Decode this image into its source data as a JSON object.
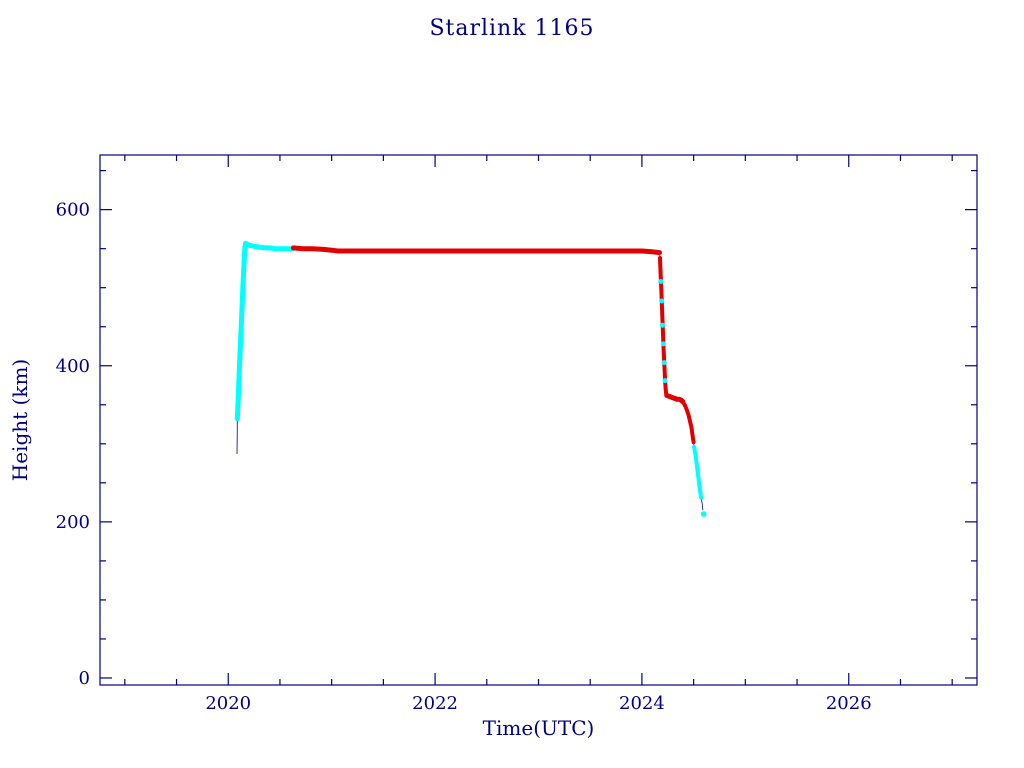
{
  "page": {
    "background": "#FFFFFF"
  },
  "chart_data": {
    "type": "scatter",
    "title": "Starlink 1165",
    "xlabel": "Time(UTC)",
    "ylabel": "Height (km)",
    "axis_color": "#000080",
    "grid": false,
    "legend": "none",
    "xlim": [
      2018.76,
      2027.24
    ],
    "ylim": [
      -9,
      670
    ],
    "xticks": [
      2020,
      2022,
      2024,
      2026
    ],
    "yticks": [
      0,
      200,
      400,
      600
    ],
    "x_minor_step": 0.5,
    "y_minor_step": 50,
    "colors": {
      "cyan_series": "#00FFFF",
      "red_series": "#E00000",
      "connector_line": "#000080"
    },
    "series": [
      {
        "name": "launch-ascent",
        "color": "#00FFFF",
        "width": 5,
        "points": [
          [
            2020.088,
            332
          ],
          [
            2020.093,
            348
          ],
          [
            2020.098,
            364
          ],
          [
            2020.103,
            380
          ],
          [
            2020.108,
            396
          ],
          [
            2020.113,
            412
          ],
          [
            2020.118,
            428
          ],
          [
            2020.124,
            446
          ],
          [
            2020.13,
            464
          ],
          [
            2020.136,
            483
          ],
          [
            2020.142,
            502
          ],
          [
            2020.149,
            522
          ],
          [
            2020.156,
            541
          ],
          [
            2020.162,
            553
          ],
          [
            2020.168,
            557
          ]
        ]
      },
      {
        "name": "early-plateau-cyan",
        "color": "#00FFFF",
        "width": 5,
        "points": [
          [
            2020.175,
            556
          ],
          [
            2020.21,
            554
          ],
          [
            2020.25,
            553
          ],
          [
            2020.3,
            552
          ],
          [
            2020.35,
            551
          ],
          [
            2020.4,
            551
          ],
          [
            2020.45,
            550
          ],
          [
            2020.5,
            550
          ],
          [
            2020.56,
            550
          ],
          [
            2020.62,
            550
          ]
        ]
      },
      {
        "name": "operational-plateau-red",
        "color": "#E00000",
        "width": 5,
        "points": [
          [
            2020.63,
            551
          ],
          [
            2020.72,
            550
          ],
          [
            2020.82,
            550
          ],
          [
            2020.92,
            549
          ],
          [
            2021.0,
            548
          ],
          [
            2021.06,
            547
          ],
          [
            2021.25,
            547
          ],
          [
            2021.5,
            547
          ],
          [
            2021.75,
            547
          ],
          [
            2022.0,
            547
          ],
          [
            2022.25,
            547
          ],
          [
            2022.5,
            547
          ],
          [
            2022.75,
            547
          ],
          [
            2023.0,
            547
          ],
          [
            2023.25,
            547
          ],
          [
            2023.5,
            547
          ],
          [
            2023.75,
            547
          ],
          [
            2024.0,
            547
          ],
          [
            2024.1,
            546
          ],
          [
            2024.17,
            545
          ]
        ]
      },
      {
        "name": "deorbit-drop-red",
        "color": "#E00000",
        "width": 4,
        "points": [
          [
            2024.175,
            538
          ],
          [
            2024.181,
            518
          ],
          [
            2024.187,
            498
          ],
          [
            2024.193,
            478
          ],
          [
            2024.199,
            458
          ],
          [
            2024.205,
            438
          ],
          [
            2024.211,
            418
          ],
          [
            2024.217,
            400
          ],
          [
            2024.223,
            384
          ],
          [
            2024.229,
            371
          ],
          [
            2024.235,
            364
          ]
        ]
      },
      {
        "name": "deorbit-drop-cyan-flecks",
        "color": "#00FFFF",
        "style": "dots",
        "size": 2.5,
        "points": [
          [
            2024.183,
            508
          ],
          [
            2024.191,
            483
          ],
          [
            2024.199,
            452
          ],
          [
            2024.207,
            428
          ],
          [
            2024.215,
            404
          ],
          [
            2024.224,
            381
          ]
        ]
      },
      {
        "name": "late-plateau-red",
        "color": "#E00000",
        "width": 5,
        "points": [
          [
            2024.24,
            362
          ],
          [
            2024.26,
            361
          ],
          [
            2024.28,
            360
          ],
          [
            2024.3,
            359
          ],
          [
            2024.32,
            358
          ],
          [
            2024.34,
            357
          ],
          [
            2024.36,
            357
          ],
          [
            2024.38,
            356
          ],
          [
            2024.395,
            354
          ]
        ]
      },
      {
        "name": "final-decay-red",
        "color": "#E00000",
        "width": 4,
        "points": [
          [
            2024.405,
            352
          ],
          [
            2024.42,
            348
          ],
          [
            2024.435,
            343
          ],
          [
            2024.45,
            337
          ],
          [
            2024.465,
            329
          ],
          [
            2024.48,
            320
          ],
          [
            2024.49,
            310
          ],
          [
            2024.5,
            302
          ]
        ]
      },
      {
        "name": "final-decay-cyan",
        "color": "#00FFFF",
        "width": 4,
        "points": [
          [
            2024.505,
            296
          ],
          [
            2024.515,
            288
          ],
          [
            2024.525,
            279
          ],
          [
            2024.535,
            269
          ],
          [
            2024.545,
            258
          ],
          [
            2024.555,
            247
          ],
          [
            2024.565,
            237
          ],
          [
            2024.572,
            231
          ]
        ]
      }
    ],
    "connector_line": {
      "color": "#000080",
      "width": 0.8,
      "pre": [
        [
          2020.085,
          287
        ],
        [
          2020.087,
          310
        ]
      ],
      "post": [
        [
          2024.582,
          224
        ],
        [
          2024.59,
          215
        ]
      ]
    },
    "end_marker": {
      "x": 2024.597,
      "y": 210,
      "color": "#00FFFF",
      "size": 2.8
    }
  }
}
